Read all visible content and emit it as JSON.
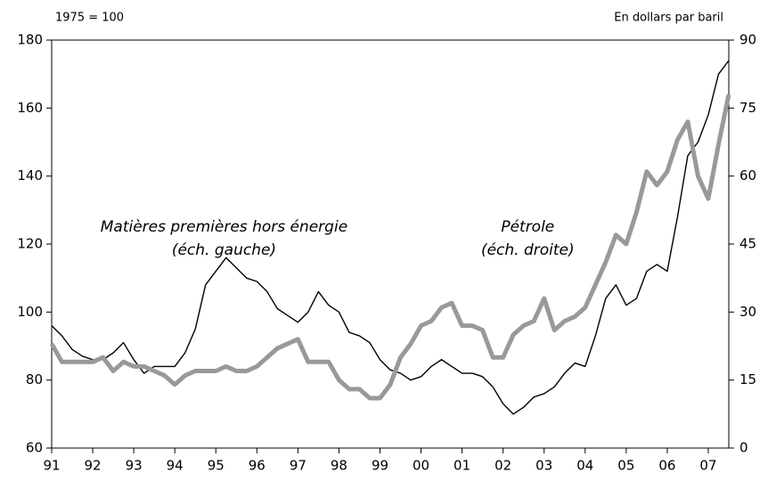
{
  "chart_data": {
    "type": "line",
    "left_unit": "1975 = 100",
    "right_unit": "En dollars par baril",
    "annotations": [
      {
        "lines": [
          "Matières premières hors énergie",
          "(éch. gauche)"
        ],
        "x": 1995.2,
        "y": 125
      },
      {
        "lines": [
          "Pétrole",
          "(éch. droite)"
        ],
        "x": 2002.6,
        "y": 125
      }
    ],
    "x": [
      1991,
      1991.25,
      1991.5,
      1991.75,
      1992,
      1992.25,
      1992.5,
      1992.75,
      1993,
      1993.25,
      1993.5,
      1993.75,
      1994,
      1994.25,
      1994.5,
      1994.75,
      1995,
      1995.25,
      1995.5,
      1995.75,
      1996,
      1996.25,
      1996.5,
      1996.75,
      1997,
      1997.25,
      1997.5,
      1997.75,
      1998,
      1998.25,
      1998.5,
      1998.75,
      1999,
      1999.25,
      1999.5,
      1999.75,
      2000,
      2000.25,
      2000.5,
      2000.75,
      2001,
      2001.25,
      2001.5,
      2001.75,
      2002,
      2002.25,
      2002.5,
      2002.75,
      2003,
      2003.25,
      2003.5,
      2003.75,
      2004,
      2004.25,
      2004.5,
      2004.75,
      2005,
      2005.25,
      2005.5,
      2005.75,
      2006,
      2006.25,
      2006.5,
      2006.75,
      2007,
      2007.25,
      2007.5
    ],
    "series": [
      {
        "name": "Matières premières hors énergie",
        "color": "#000000",
        "width": 1.4,
        "axis": "y",
        "values": [
          96,
          93,
          89,
          87,
          86,
          86,
          88,
          91,
          86,
          82,
          84,
          84,
          84,
          88,
          95,
          108,
          112,
          116,
          113,
          110,
          109,
          106,
          101,
          99,
          97,
          100,
          106,
          102,
          100,
          94,
          93,
          91,
          86,
          83,
          82,
          80,
          81,
          84,
          86,
          84,
          82,
          82,
          81,
          78,
          73,
          70,
          72,
          75,
          76,
          78,
          82,
          85,
          84,
          93,
          104,
          108,
          102,
          104,
          112,
          114,
          112,
          128,
          146,
          150,
          158,
          170,
          174
        ]
      },
      {
        "name": "Pétrole",
        "color": "#999999",
        "width": 5,
        "axis": "y2",
        "values": [
          23,
          19,
          19,
          19,
          19,
          20,
          17,
          19,
          18,
          18,
          17,
          16,
          14,
          16,
          17,
          17,
          17,
          18,
          17,
          17,
          18,
          20,
          22,
          23,
          24,
          19,
          19,
          19,
          15,
          13,
          13,
          11,
          11,
          14,
          20,
          23,
          27,
          28,
          31,
          32,
          27,
          27,
          26,
          20,
          20,
          25,
          27,
          28,
          33,
          26,
          28,
          29,
          31,
          36,
          41,
          47,
          45,
          52,
          61,
          58,
          61,
          68,
          72,
          60,
          55,
          67,
          78
        ]
      }
    ],
    "xlim": [
      1991,
      2007.5
    ],
    "xticks": [
      {
        "value": 1991,
        "label": "91"
      },
      {
        "value": 1992,
        "label": "92"
      },
      {
        "value": 1993,
        "label": "93"
      },
      {
        "value": 1994,
        "label": "94"
      },
      {
        "value": 1995,
        "label": "95"
      },
      {
        "value": 1996,
        "label": "96"
      },
      {
        "value": 1997,
        "label": "97"
      },
      {
        "value": 1998,
        "label": "98"
      },
      {
        "value": 1999,
        "label": "99"
      },
      {
        "value": 2000,
        "label": "00"
      },
      {
        "value": 2001,
        "label": "01"
      },
      {
        "value": 2002,
        "label": "02"
      },
      {
        "value": 2003,
        "label": "03"
      },
      {
        "value": 2004,
        "label": "04"
      },
      {
        "value": 2005,
        "label": "05"
      },
      {
        "value": 2006,
        "label": "06"
      },
      {
        "value": 2007,
        "label": "07"
      }
    ],
    "ylim": [
      60,
      180
    ],
    "yticks": [
      60,
      80,
      100,
      120,
      140,
      160,
      180
    ],
    "y2lim": [
      0,
      90
    ],
    "y2ticks": [
      0,
      15,
      30,
      45,
      60,
      75,
      90
    ],
    "grid": false
  }
}
